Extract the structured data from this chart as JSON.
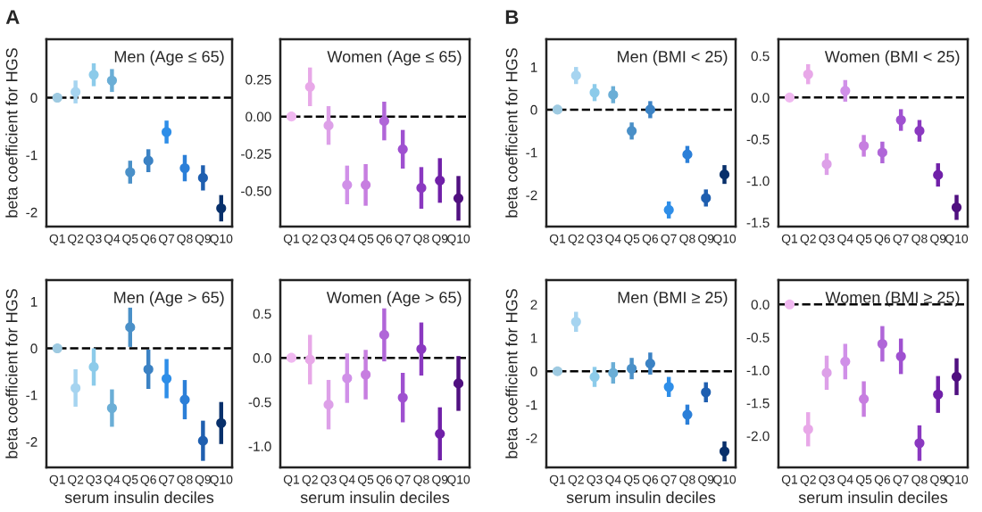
{
  "chart_data": [
    {
      "type": "scatter",
      "title": "Men (Age ≤ 65)",
      "ylabel": "beta coefficient for HGS",
      "annotations": [
        "A"
      ],
      "categories": [
        "Q1",
        "Q2",
        "Q3",
        "Q4",
        "Q5",
        "Q6",
        "Q7",
        "Q8",
        "Q9",
        "Q10"
      ],
      "ylim": [
        -2.25,
        1.02
      ],
      "yticks": [
        -2,
        -1,
        0
      ],
      "grid": false,
      "marker": "circle",
      "ref_lines": [
        {
          "axis": "y",
          "value": 0,
          "color": "#000000",
          "line_style": "dashed"
        }
      ],
      "series": [
        {
          "values": [
            0,
            0.1,
            0.4,
            0.3,
            -1.3,
            -1.1,
            -0.6,
            -1.23,
            -1.4,
            -1.93
          ],
          "errors": [
            null,
            0.2,
            0.2,
            0.2,
            0.2,
            0.2,
            0.2,
            0.23,
            0.22,
            0.23
          ],
          "colors": [
            "#9ecae1",
            "#a6d4f0",
            "#8ccbea",
            "#6baed6",
            "#4a90c8",
            "#3b82c4",
            "#2e8ee8",
            "#2b7fd8",
            "#1f5fb0",
            "#08306b"
          ]
        }
      ]
    },
    {
      "type": "scatter",
      "title": "Women (Age ≤ 65)",
      "categories": [
        "Q1",
        "Q2",
        "Q3",
        "Q4",
        "Q5",
        "Q6",
        "Q7",
        "Q8",
        "Q9",
        "Q10"
      ],
      "ylim": [
        -0.74,
        0.52
      ],
      "yticks": [
        {
          "value": 0.25,
          "label": "0.25"
        },
        {
          "value": 0,
          "label": "0.00"
        },
        {
          "value": -0.25,
          "label": "-0.25"
        },
        {
          "value": -0.5,
          "label": "-0.50"
        }
      ],
      "grid": false,
      "marker": "circle",
      "ref_lines": [
        {
          "axis": "y",
          "value": 0,
          "color": "#000000",
          "line_style": "dashed"
        }
      ],
      "series": [
        {
          "values": [
            0,
            0.2,
            -0.06,
            -0.46,
            -0.46,
            -0.03,
            -0.22,
            -0.48,
            -0.43,
            -0.55
          ],
          "errors": [
            null,
            0.13,
            0.13,
            0.13,
            0.14,
            0.13,
            0.13,
            0.14,
            0.15,
            0.15
          ],
          "colors": [
            "#f0b8f0",
            "#e8a8e8",
            "#dda0e8",
            "#d090e8",
            "#c77ee0",
            "#b066d8",
            "#9f50d0",
            "#8a38c0",
            "#7020a8",
            "#501080"
          ]
        }
      ]
    },
    {
      "type": "scatter",
      "title": "Men (BMI < 25)",
      "ylabel": "beta coefficient for HGS",
      "annotations": [
        "B"
      ],
      "categories": [
        "Q1",
        "Q2",
        "Q3",
        "Q4",
        "Q5",
        "Q6",
        "Q7",
        "Q8",
        "Q9",
        "Q10"
      ],
      "ylim": [
        -2.74,
        1.65
      ],
      "yticks": [
        -2,
        -1,
        0,
        1
      ],
      "grid": false,
      "marker": "circle",
      "ref_lines": [
        {
          "axis": "y",
          "value": 0,
          "color": "#000000",
          "line_style": "dashed"
        }
      ],
      "series": [
        {
          "values": [
            0,
            0.8,
            0.4,
            0.35,
            -0.5,
            0,
            -2.35,
            -1.05,
            -2.07,
            -1.52
          ],
          "errors": [
            null,
            0.2,
            0.2,
            0.2,
            0.2,
            0.2,
            0.2,
            0.2,
            0.2,
            0.22
          ],
          "colors": [
            "#9ecae1",
            "#a6d4f0",
            "#8ccbea",
            "#6baed6",
            "#4a90c8",
            "#3b82c4",
            "#2e8ee8",
            "#2b7fd8",
            "#1f5fb0",
            "#08306b"
          ]
        }
      ]
    },
    {
      "type": "scatter",
      "title": "Women (BMI < 25)",
      "categories": [
        "Q1",
        "Q2",
        "Q3",
        "Q4",
        "Q5",
        "Q6",
        "Q7",
        "Q8",
        "Q9",
        "Q10"
      ],
      "ylim": [
        -1.55,
        0.7
      ],
      "yticks": [
        {
          "value": 0.5,
          "label": "0.5"
        },
        {
          "value": 0,
          "label": "0.0"
        },
        {
          "value": -0.5,
          "label": "-0.5"
        },
        {
          "value": -1,
          "label": "-1.0"
        },
        {
          "value": -1.5,
          "label": "-1.5"
        }
      ],
      "grid": false,
      "marker": "circle",
      "ref_lines": [
        {
          "axis": "y",
          "value": 0,
          "color": "#000000",
          "line_style": "dashed"
        }
      ],
      "series": [
        {
          "values": [
            0,
            0.28,
            -0.8,
            0.08,
            -0.58,
            -0.66,
            -0.27,
            -0.4,
            -0.93,
            -1.32
          ],
          "errors": [
            null,
            0.12,
            0.13,
            0.13,
            0.13,
            0.13,
            0.13,
            0.13,
            0.14,
            0.15
          ],
          "colors": [
            "#f0b8f0",
            "#e8a8e8",
            "#dda0e8",
            "#d090e8",
            "#c77ee0",
            "#b066d8",
            "#9f50d0",
            "#8a38c0",
            "#7020a8",
            "#501080"
          ]
        }
      ]
    },
    {
      "type": "scatter",
      "title": "Men (Age > 65)",
      "xlabel": "serum insulin deciles",
      "ylabel": "beta coefficient for HGS",
      "categories": [
        "Q1",
        "Q2",
        "Q3",
        "Q4",
        "Q5",
        "Q6",
        "Q7",
        "Q8",
        "Q9",
        "Q10"
      ],
      "ylim": [
        -2.55,
        1.46
      ],
      "yticks": [
        -2,
        -1,
        0,
        1
      ],
      "grid": false,
      "marker": "circle",
      "ref_lines": [
        {
          "axis": "y",
          "value": 0,
          "color": "#000000",
          "line_style": "dashed"
        }
      ],
      "series": [
        {
          "values": [
            0,
            -0.85,
            -0.4,
            -1.28,
            0.45,
            -0.45,
            -0.65,
            -1.1,
            -1.98,
            -1.6
          ],
          "errors": [
            null,
            0.4,
            0.4,
            0.4,
            0.42,
            0.42,
            0.42,
            0.42,
            0.43,
            0.45
          ],
          "colors": [
            "#9ecae1",
            "#a6d4f0",
            "#8ccbea",
            "#6baed6",
            "#4a90c8",
            "#3b82c4",
            "#2e8ee8",
            "#2b7fd8",
            "#1f5fb0",
            "#08306b"
          ]
        }
      ]
    },
    {
      "type": "scatter",
      "title": "Women (Age > 65)",
      "xlabel": "serum insulin deciles",
      "categories": [
        "Q1",
        "Q2",
        "Q3",
        "Q4",
        "Q5",
        "Q6",
        "Q7",
        "Q8",
        "Q9",
        "Q10"
      ],
      "ylim": [
        -1.24,
        0.88
      ],
      "yticks": [
        {
          "value": 0.5,
          "label": "0.5"
        },
        {
          "value": 0,
          "label": "0.0"
        },
        {
          "value": -0.5,
          "label": "-0.5"
        },
        {
          "value": -1,
          "label": "-1.0"
        }
      ],
      "grid": false,
      "marker": "circle",
      "ref_lines": [
        {
          "axis": "y",
          "value": 0,
          "color": "#000000",
          "line_style": "dashed"
        }
      ],
      "series": [
        {
          "values": [
            0,
            -0.02,
            -0.53,
            -0.23,
            -0.19,
            0.26,
            -0.45,
            0.1,
            -0.86,
            -0.29
          ],
          "errors": [
            null,
            0.28,
            0.28,
            0.28,
            0.28,
            0.3,
            0.28,
            0.3,
            0.3,
            0.31
          ],
          "colors": [
            "#f0b8f0",
            "#e8a8e8",
            "#dda0e8",
            "#d090e8",
            "#c77ee0",
            "#b066d8",
            "#9f50d0",
            "#8a38c0",
            "#7020a8",
            "#501080"
          ]
        }
      ]
    },
    {
      "type": "scatter",
      "title": "Men (BMI ≥ 25)",
      "xlabel": "serum insulin deciles",
      "ylabel": "beta coefficient for HGS",
      "categories": [
        "Q1",
        "Q2",
        "Q3",
        "Q4",
        "Q5",
        "Q6",
        "Q7",
        "Q8",
        "Q9",
        "Q10"
      ],
      "ylim": [
        -2.88,
        2.73
      ],
      "yticks": [
        -2,
        -1,
        0,
        1,
        2
      ],
      "grid": false,
      "marker": "circle",
      "ref_lines": [
        {
          "axis": "y",
          "value": 0,
          "color": "#000000",
          "line_style": "dashed"
        }
      ],
      "series": [
        {
          "values": [
            0,
            1.48,
            -0.17,
            -0.05,
            0.08,
            0.23,
            -0.47,
            -1.3,
            -0.63,
            -2.4
          ],
          "errors": [
            null,
            0.3,
            0.3,
            0.32,
            0.32,
            0.33,
            0.3,
            0.3,
            0.3,
            0.3
          ],
          "colors": [
            "#9ecae1",
            "#a6d4f0",
            "#8ccbea",
            "#6baed6",
            "#4a90c8",
            "#3b82c4",
            "#2e8ee8",
            "#2b7fd8",
            "#1f5fb0",
            "#08306b"
          ]
        }
      ]
    },
    {
      "type": "scatter",
      "title": "Women (BMI ≥ 25)",
      "xlabel": "serum insulin deciles",
      "categories": [
        "Q1",
        "Q2",
        "Q3",
        "Q4",
        "Q5",
        "Q6",
        "Q7",
        "Q8",
        "Q9",
        "Q10"
      ],
      "ylim": [
        -2.48,
        0.37
      ],
      "yticks": [
        {
          "value": 0,
          "label": "0.0"
        },
        {
          "value": -0.5,
          "label": "-0.5"
        },
        {
          "value": -1,
          "label": "-1.0"
        },
        {
          "value": -1.5,
          "label": "-1.5"
        },
        {
          "value": -2,
          "label": "-2.0"
        }
      ],
      "grid": false,
      "marker": "circle",
      "ref_lines": [
        {
          "axis": "y",
          "value": 0,
          "color": "#000000",
          "line_style": "dashed"
        }
      ],
      "series": [
        {
          "values": [
            0,
            -1.9,
            -1.04,
            -0.87,
            -1.44,
            -0.6,
            -0.79,
            -2.11,
            -1.37,
            -1.1
          ],
          "errors": [
            null,
            0.26,
            0.26,
            0.27,
            0.27,
            0.27,
            0.27,
            0.27,
            0.28,
            0.28
          ],
          "colors": [
            "#f0b8f0",
            "#e8a8e8",
            "#dda0e8",
            "#d090e8",
            "#c77ee0",
            "#b066d8",
            "#9f50d0",
            "#8a38c0",
            "#7020a8",
            "#501080"
          ]
        }
      ]
    }
  ]
}
